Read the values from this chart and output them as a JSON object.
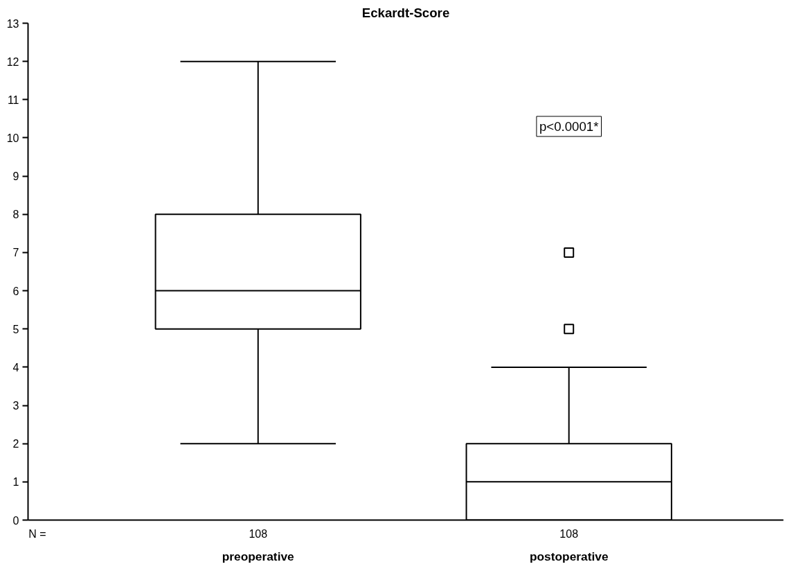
{
  "chart_data": {
    "type": "box",
    "title": "Eckardt-Score",
    "categories": [
      "preoperative",
      "postoperative"
    ],
    "boxes": [
      {
        "low": 2,
        "q1": 5,
        "median": 6,
        "q3": 8,
        "high": 12
      },
      {
        "low": 0,
        "q1": 0,
        "median": 1,
        "q3": 2,
        "high": 4,
        "outliers": [
          5,
          7
        ]
      }
    ],
    "color": "#000000",
    "ylim": [
      0,
      13
    ],
    "yticks": [
      0,
      1,
      2,
      3,
      4,
      5,
      6,
      7,
      8,
      9,
      10,
      11,
      12,
      13
    ],
    "grid": false,
    "annotations": [
      "N =",
      "108",
      "108",
      "p<0.0001*"
    ]
  }
}
